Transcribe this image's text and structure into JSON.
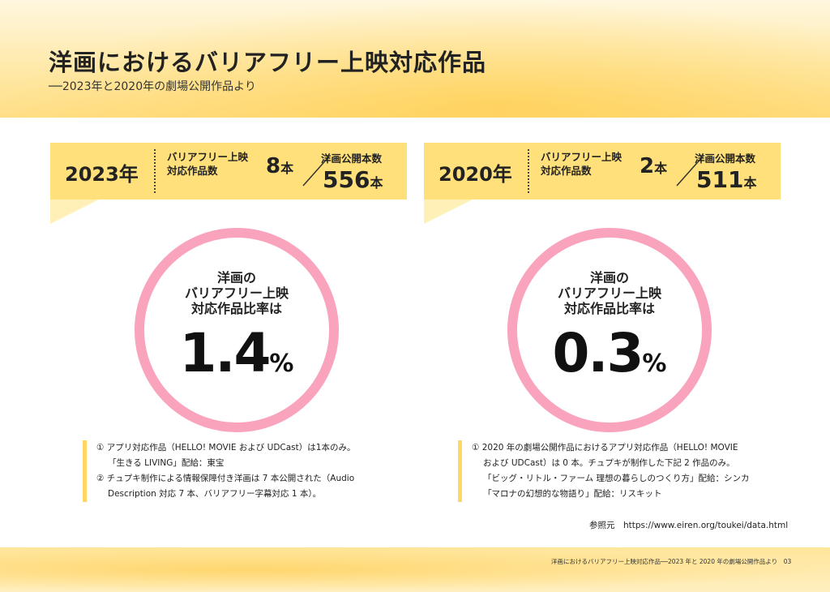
{
  "header": {
    "title": "洋画におけるバリアフリー上映対応作品",
    "subtitle": "──2023年と2020年の劇場公開作品より"
  },
  "panels": [
    {
      "year": "2023年",
      "label_bf_line1": "バリアフリー上映",
      "label_bf_line2": "対応作品数",
      "bf_count": "8",
      "unit": "本",
      "label_total": "洋画公開本数",
      "total": "556",
      "ring_line1": "洋画の",
      "ring_line2": "バリアフリー上映",
      "ring_line3": "対応作品比率は",
      "ratio": "1.4",
      "pct_sign": "%",
      "notes": [
        "① アプリ対応作品（HELLO! MOVIE および UDCast）は1本のみ。",
        "「生きる LIVING」配給：東宝",
        "② チュプキ制作による情報保障付き洋画は 7 本公開された（Audio",
        "Description 対応 7 本、バリアフリー字幕対応 1 本）。"
      ]
    },
    {
      "year": "2020年",
      "label_bf_line1": "バリアフリー上映",
      "label_bf_line2": "対応作品数",
      "bf_count": "2",
      "unit": "本",
      "label_total": "洋画公開本数",
      "total": "511",
      "ring_line1": "洋画の",
      "ring_line2": "バリアフリー上映",
      "ring_line3": "対応作品比率は",
      "ratio": "0.3",
      "pct_sign": "%",
      "notes": [
        "① 2020 年の劇場公開作品におけるアプリ対応作品（HELLO! MOVIE",
        "および UDCast）は 0 本。チュプキが制作した下記 2 作品のみ。",
        "「ビッグ・リトル・ファーム 理想の暮らしのつくり方」配給：シンカ",
        "「マロナの幻想的な物語り」配給：リスキット"
      ]
    }
  ],
  "reference": "参照元　https://www.eiren.org/toukei/data.html",
  "footer": {
    "text": "洋画におけるバリアフリー上映対応作品──2023 年と 2020 年の劇場公開作品より　03"
  },
  "colors": {
    "banner": "#ffe07a",
    "ring": "#f9a3bd",
    "note_bar": "#ffd766"
  }
}
